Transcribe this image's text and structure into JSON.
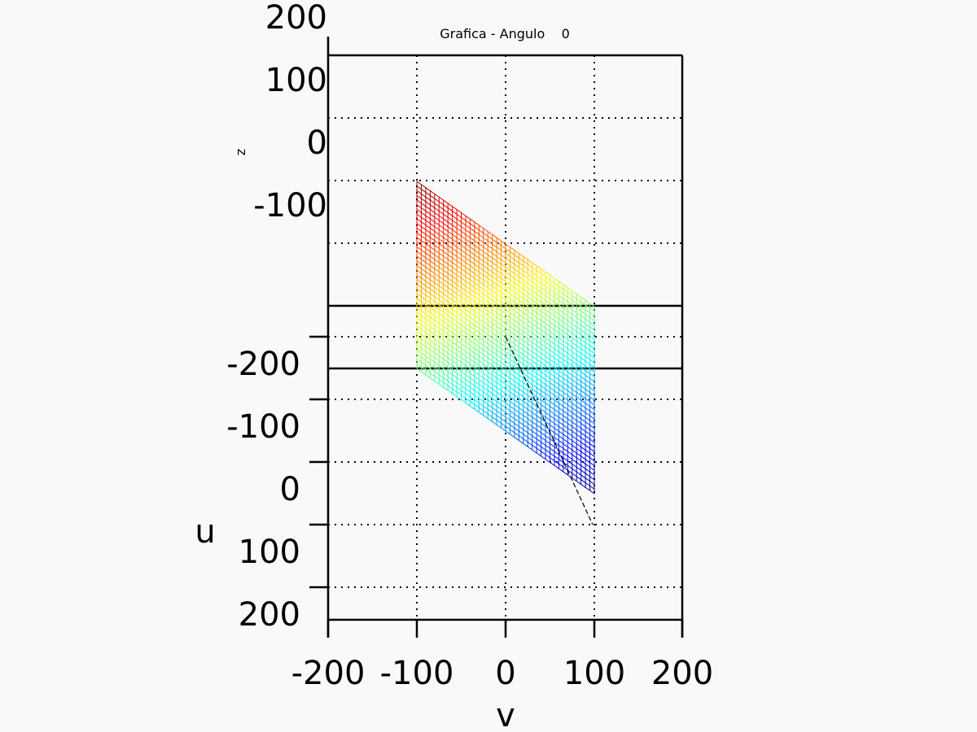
{
  "chart_data": {
    "type": "surface",
    "title": "Grafica - Angulo    0",
    "xlabel": "v",
    "ylabel": "u",
    "zlabel": "z",
    "x_ticks": [
      "-200",
      "-100",
      "0",
      "100",
      "200"
    ],
    "u_ticks": [
      "-200",
      "-100",
      "0",
      "100",
      "200"
    ],
    "z_ticks": [
      "200",
      "100",
      "0",
      "-100"
    ],
    "xlim": [
      -200,
      200
    ],
    "ylim": [
      -200,
      200
    ],
    "zlim": [
      -100,
      200
    ],
    "grid": true,
    "colormap": "jet",
    "surface": {
      "v_range": [
        -100,
        100
      ],
      "u_range": [
        -100,
        100
      ],
      "grid_lines": 41,
      "z_formula": "z = 0.5 * u + 0.5 * v",
      "corners": [
        {
          "v": -100,
          "u": -100,
          "z": -100
        },
        {
          "v": 100,
          "u": -100,
          "z": 0
        },
        {
          "v": -100,
          "u": 100,
          "z": 0
        },
        {
          "v": 100,
          "u": 100,
          "z": 100
        }
      ]
    },
    "line_segment": {
      "from": {
        "v": 0,
        "u": -200
      },
      "to": {
        "v": 100,
        "u": 100
      }
    },
    "colors": {
      "axes": "#000000",
      "grid": "#000000",
      "background": "#f8f9f8",
      "segment": "#000000"
    }
  }
}
